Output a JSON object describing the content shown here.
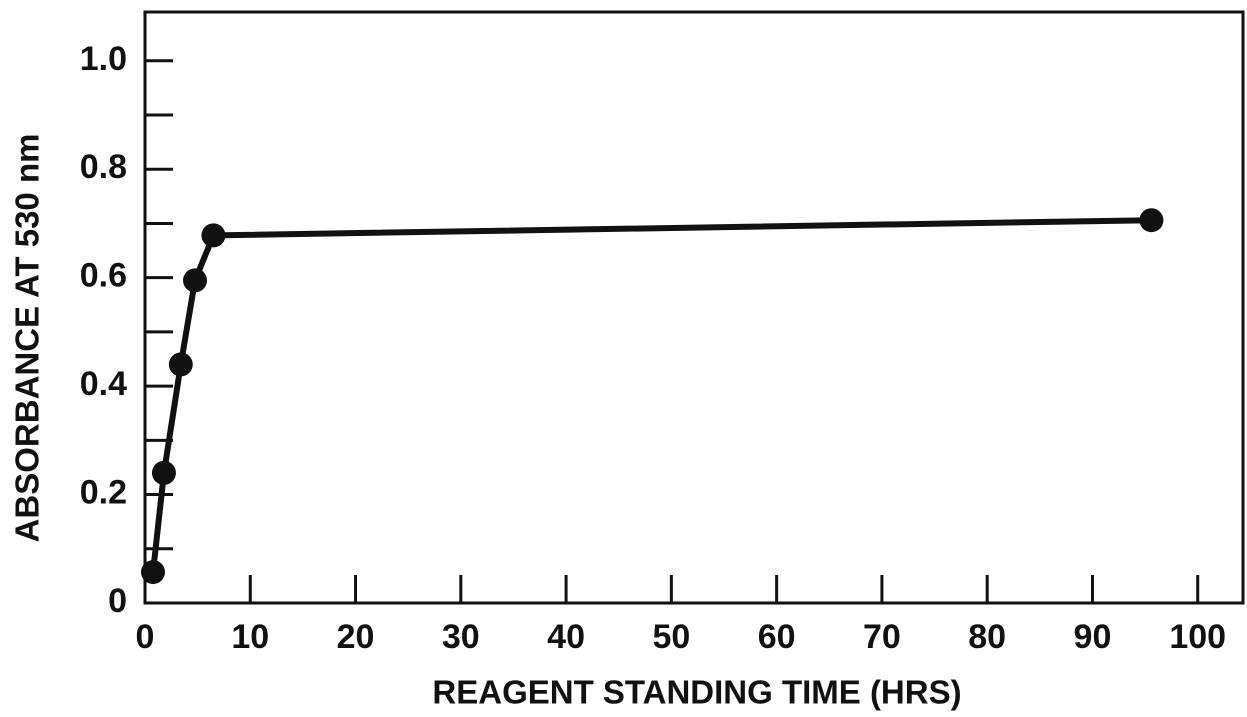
{
  "chart_data": {
    "type": "line",
    "xlabel": "REAGENT STANDING TIME (HRS)",
    "ylabel": "ABSORBANCE AT 530 nm",
    "x": [
      0.76,
      1.8,
      3.4,
      4.75,
      6.5,
      95.6
    ],
    "values": [
      0.057,
      0.24,
      0.44,
      0.595,
      0.678,
      0.706
    ],
    "color": "#111111",
    "xlim": [
      0,
      104.3
    ],
    "ylim": [
      0,
      1.09
    ],
    "xticks": [
      0,
      10,
      20,
      30,
      40,
      50,
      60,
      70,
      80,
      90,
      100
    ],
    "yticks": [
      0,
      0.2,
      0.4,
      0.6,
      0.8,
      {
        "value": 1,
        "label": "1.0"
      }
    ],
    "yminorticks": [
      0.1,
      0.3,
      0.5,
      0.7,
      0.9
    ]
  }
}
